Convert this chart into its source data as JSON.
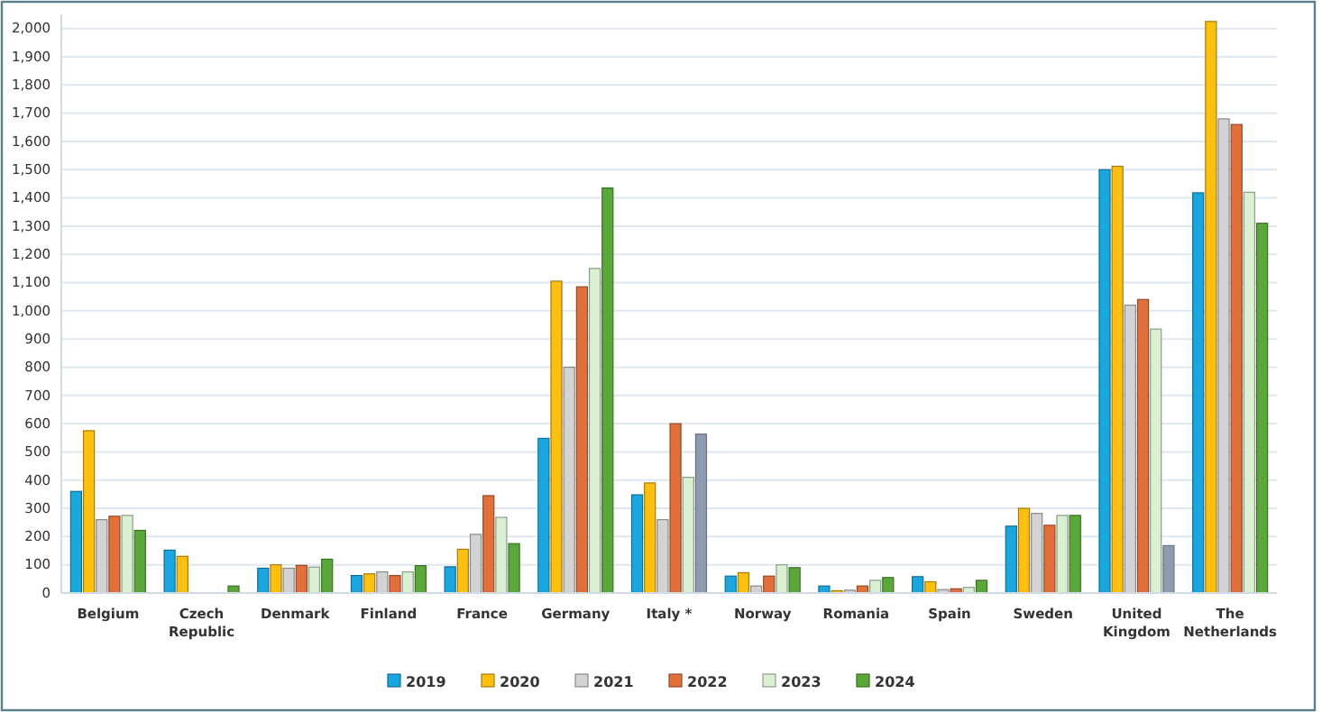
{
  "chart_data": {
    "type": "bar",
    "categories": [
      "Belgium",
      "Czech Republic",
      "Denmark",
      "Finland",
      "France",
      "Germany",
      "Italy *",
      "Norway",
      "Romania",
      "Spain",
      "Sweden",
      "United Kingdom",
      "The Netherlands"
    ],
    "series": [
      {
        "name": "2019",
        "color": "#1aa7e0",
        "values": [
          360,
          152,
          88,
          62,
          93,
          548,
          348,
          60,
          25,
          58,
          237,
          1500,
          1418
        ]
      },
      {
        "name": "2020",
        "color": "#fdbf10",
        "values": [
          575,
          130,
          100,
          68,
          155,
          1105,
          390,
          72,
          8,
          40,
          300,
          1512,
          2025
        ]
      },
      {
        "name": "2021",
        "color": "#d3d3d3",
        "values": [
          260,
          null,
          88,
          75,
          208,
          800,
          260,
          25,
          10,
          12,
          282,
          1020,
          1680
        ]
      },
      {
        "name": "2022",
        "color": "#e2703a",
        "values": [
          272,
          null,
          98,
          62,
          345,
          1085,
          600,
          60,
          25,
          15,
          240,
          1040,
          1660
        ]
      },
      {
        "name": "2023",
        "color": "#d9f0d3",
        "values": [
          275,
          null,
          92,
          75,
          268,
          1150,
          410,
          100,
          45,
          20,
          275,
          935,
          1420
        ]
      },
      {
        "name": "2024",
        "color": "#5aa83a",
        "colors": [
          "#5aa83a",
          "#5aa83a",
          "#5aa83a",
          "#5aa83a",
          "#5aa83a",
          "#5aa83a",
          "#8e9aaf",
          "#5aa83a",
          "#5aa83a",
          "#5aa83a",
          "#5aa83a",
          "#8e9aaf",
          "#5aa83a"
        ],
        "values": [
          222,
          25,
          120,
          97,
          175,
          1435,
          563,
          90,
          55,
          45,
          275,
          168,
          1310
        ]
      }
    ],
    "ylim": [
      0,
      2050
    ],
    "yticks": [
      0,
      100,
      200,
      300,
      400,
      500,
      600,
      700,
      800,
      900,
      {
        "value": 1000,
        "label": "1,000"
      },
      {
        "value": 1100,
        "label": "1,100"
      },
      {
        "value": 1200,
        "label": "1,200"
      },
      {
        "value": 1300,
        "label": "1,300"
      },
      {
        "value": 1400,
        "label": "1,400"
      },
      {
        "value": 1500,
        "label": "1,500"
      },
      {
        "value": 1600,
        "label": "1,600"
      },
      {
        "value": 1700,
        "label": "1,700"
      },
      {
        "value": 1800,
        "label": "1,800"
      },
      {
        "value": 1900,
        "label": "1,900"
      },
      {
        "value": 2000,
        "label": "2,000"
      }
    ],
    "grid": "y",
    "legend": "bottom"
  }
}
